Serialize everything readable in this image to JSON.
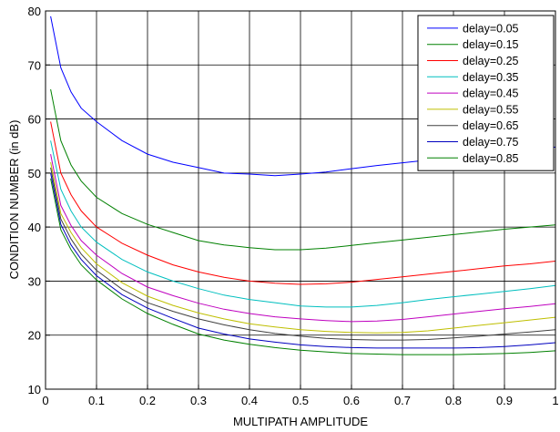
{
  "chart_data": {
    "type": "line",
    "title": "",
    "xlabel": "MULTIPATH AMPLITUDE",
    "ylabel": "CONDITION NUMBER (in dB)",
    "xlim": [
      0,
      1
    ],
    "ylim": [
      10,
      80
    ],
    "xticks": [
      0,
      0.1,
      0.2,
      0.3,
      0.4,
      0.5,
      0.6,
      0.7,
      0.8,
      0.9,
      1
    ],
    "xtick_labels": [
      "0",
      "0.1",
      "0.2",
      "0.3",
      "0.4",
      "0.5",
      "0.6",
      "0.7",
      "0.8",
      "0.9",
      "1"
    ],
    "yticks": [
      10,
      20,
      30,
      40,
      50,
      60,
      70,
      80
    ],
    "ytick_labels": [
      "10",
      "20",
      "30",
      "40",
      "50",
      "60",
      "70",
      "80"
    ],
    "grid": true,
    "legend_position": "top-right",
    "x": [
      0.01,
      0.03,
      0.05,
      0.07,
      0.1,
      0.15,
      0.2,
      0.25,
      0.3,
      0.35,
      0.4,
      0.45,
      0.5,
      0.55,
      0.6,
      0.65,
      0.7,
      0.75,
      0.8,
      0.85,
      0.9,
      0.95,
      1.0
    ],
    "series": [
      {
        "name": "delay=0.05",
        "color": "#0000ff",
        "values": [
          79,
          69.5,
          65,
          62,
          59.5,
          56,
          53.5,
          52,
          51,
          50,
          49.8,
          49.5,
          49.8,
          50.2,
          50.8,
          51.4,
          51.9,
          52.4,
          53,
          53.5,
          54,
          54.3,
          54.8
        ]
      },
      {
        "name": "delay=0.15",
        "color": "#008000",
        "values": [
          65.5,
          56,
          51.5,
          48.5,
          45.5,
          42.5,
          40.5,
          39,
          37.5,
          36.7,
          36.2,
          35.8,
          35.8,
          36.1,
          36.6,
          37.1,
          37.6,
          38.1,
          38.6,
          39.1,
          39.6,
          40,
          40.4
        ]
      },
      {
        "name": "delay=0.25",
        "color": "#ff0000",
        "values": [
          59.5,
          50,
          46,
          43,
          40,
          37,
          34.8,
          33,
          31.7,
          30.7,
          30,
          29.6,
          29.4,
          29.5,
          29.8,
          30.3,
          30.8,
          31.3,
          31.8,
          32.3,
          32.8,
          33.2,
          33.7
        ]
      },
      {
        "name": "delay=0.35",
        "color": "#00bfbf",
        "values": [
          56,
          47,
          43,
          40,
          37.2,
          34,
          31.7,
          30,
          28.6,
          27.4,
          26.6,
          26,
          25.4,
          25.2,
          25.2,
          25.5,
          26,
          26.6,
          27.1,
          27.6,
          28.1,
          28.6,
          29.2
        ]
      },
      {
        "name": "delay=0.45",
        "color": "#bf00bf",
        "values": [
          53.5,
          44,
          40.3,
          37.5,
          34.8,
          31.4,
          28.9,
          27.3,
          25.9,
          24.8,
          24,
          23.4,
          23,
          22.7,
          22.5,
          22.6,
          22.9,
          23.4,
          23.9,
          24.4,
          24.9,
          25.3,
          25.8
        ]
      },
      {
        "name": "delay=0.55",
        "color": "#bfbf00",
        "values": [
          52,
          42.5,
          39,
          36.2,
          33.2,
          29.7,
          27.2,
          25.5,
          24.1,
          23,
          22.1,
          21.5,
          21,
          20.7,
          20.5,
          20.4,
          20.5,
          20.8,
          21.3,
          21.8,
          22.3,
          22.8,
          23.3
        ]
      },
      {
        "name": "delay=0.65",
        "color": "#404040",
        "values": [
          51,
          41.5,
          37.8,
          35,
          32,
          28.5,
          26,
          24.4,
          23,
          21.9,
          21,
          20.3,
          19.8,
          19.4,
          19.2,
          19.1,
          19.1,
          19.2,
          19.5,
          19.8,
          20.2,
          20.6,
          21
        ]
      },
      {
        "name": "delay=0.75",
        "color": "#0000bf",
        "values": [
          50,
          40.5,
          36.7,
          34,
          31,
          27.5,
          25,
          23.1,
          21.3,
          20.2,
          19.3,
          18.7,
          18.2,
          17.9,
          17.7,
          17.6,
          17.6,
          17.6,
          17.6,
          17.7,
          17.9,
          18.2,
          18.6
        ]
      },
      {
        "name": "delay=0.85",
        "color": "#008000",
        "values": [
          49,
          39.5,
          35.8,
          33,
          30.2,
          26.7,
          24,
          22,
          20.2,
          19.1,
          18.3,
          17.7,
          17.2,
          16.9,
          16.6,
          16.5,
          16.4,
          16.4,
          16.4,
          16.5,
          16.6,
          16.8,
          17.1
        ]
      }
    ]
  }
}
